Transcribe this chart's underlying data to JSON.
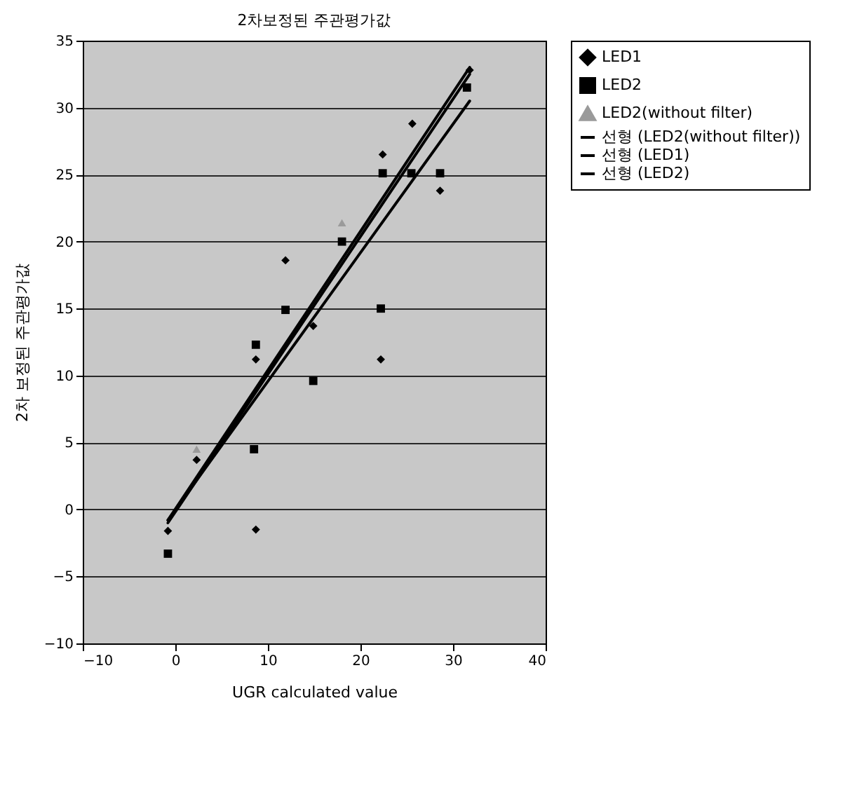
{
  "chart_data": {
    "type": "scatter",
    "title": "2차보정된 주관평가값",
    "xlabel": "UGR calculated value",
    "ylabel": "2차 보정된 주관평가값",
    "xlim": [
      -10,
      40
    ],
    "xticks": [
      -10,
      0,
      10,
      20,
      30,
      40
    ],
    "ylim": [
      -10,
      35
    ],
    "yticks": [
      -10,
      -5,
      0,
      5,
      10,
      15,
      20,
      25,
      30,
      35
    ],
    "grid": "y",
    "legend": "right",
    "series": [
      {
        "name": "LED1",
        "marker": "diamond",
        "color": "#000000",
        "x": [
          -0.8,
          2.3,
          8.7,
          8.7,
          11.9,
          14.9,
          22.4,
          22.2,
          25.6,
          28.6,
          31.8
        ],
        "values": [
          -1.6,
          3.7,
          11.2,
          -1.5,
          18.6,
          13.7,
          26.5,
          11.2,
          28.8,
          23.8,
          32.8
        ]
      },
      {
        "name": "LED2",
        "marker": "square",
        "color": "#000000",
        "x": [
          -0.8,
          8.5,
          8.7,
          11.9,
          14.9,
          18,
          22.2,
          22.4,
          25.5,
          28.6,
          31.5
        ],
        "values": [
          -3.3,
          4.5,
          12.3,
          14.9,
          9.6,
          20,
          15,
          25.1,
          25.1,
          25.1,
          31.5
        ]
      },
      {
        "name": "LED2(without filter)",
        "marker": "triangle",
        "color": "#9a9a9a",
        "x": [
          2.3,
          18
        ],
        "values": [
          4.5,
          21.4
        ]
      },
      {
        "name": "선형 (LED2(without filter))",
        "type": "line",
        "color": "#000000",
        "x": [
          -0.8,
          31.8
        ],
        "values": [
          -0.8,
          33
        ]
      },
      {
        "name": "선형 (LED1)",
        "type": "line",
        "color": "#000000",
        "x": [
          -0.8,
          31.8
        ],
        "values": [
          -1,
          32.5
        ]
      },
      {
        "name": "선형 (LED2)",
        "type": "line",
        "color": "#000000",
        "x": [
          -0.8,
          31.8
        ],
        "values": [
          -0.8,
          30.5
        ]
      }
    ]
  }
}
